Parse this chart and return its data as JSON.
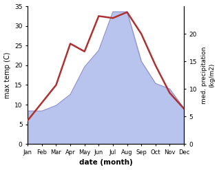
{
  "months": [
    "Jan",
    "Feb",
    "Mar",
    "Apr",
    "May",
    "Jun",
    "Jul",
    "Aug",
    "Sep",
    "Oct",
    "Nov",
    "Dec"
  ],
  "temp": [
    6,
    10.5,
    15,
    25.5,
    23.5,
    32.5,
    32,
    33.5,
    28,
    20,
    13,
    9
  ],
  "precip": [
    6,
    6,
    7,
    9,
    14,
    17,
    24,
    24,
    15,
    11,
    10,
    6.5
  ],
  "temp_color": "#b03030",
  "precip_fill_color": "#b8c4ee",
  "precip_line_color": "#9090cc",
  "temp_ylim": [
    0,
    35
  ],
  "precip_ylim": [
    0,
    25
  ],
  "temp_yticks": [
    0,
    5,
    10,
    15,
    20,
    25,
    30,
    35
  ],
  "precip_yticks": [
    0,
    5,
    10,
    15,
    20
  ],
  "xlabel": "date (month)",
  "ylabel_left": "max temp (C)",
  "ylabel_right": "med. precipitation\n(kg/m2)",
  "bg_color": "#ffffff"
}
